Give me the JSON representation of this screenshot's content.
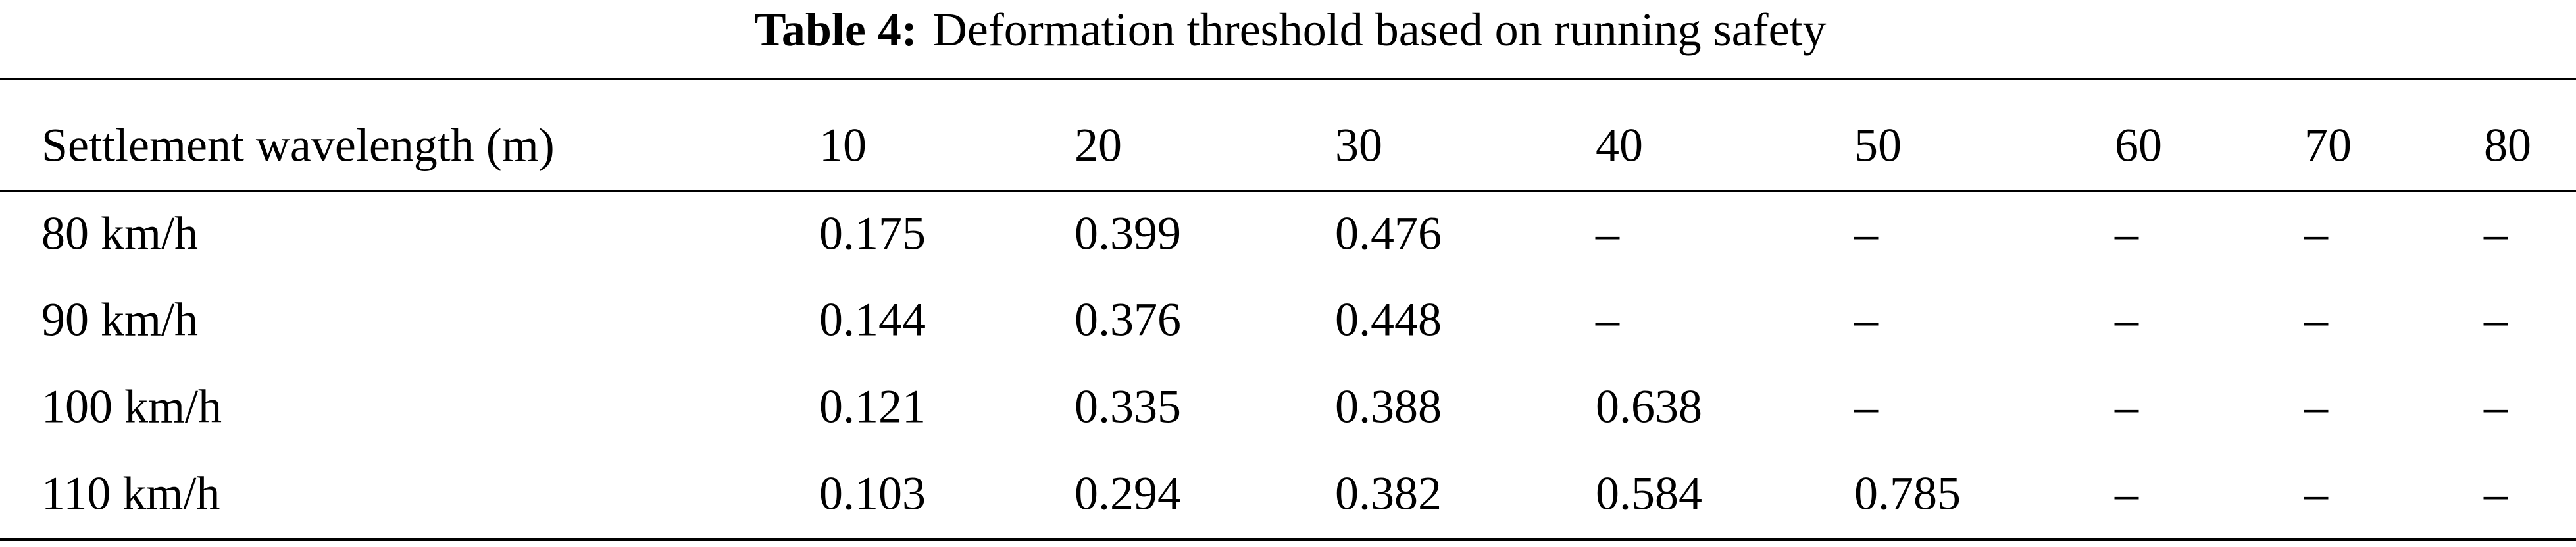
{
  "caption": {
    "label": "Table 4:",
    "title": "Deformation threshold based on running safety"
  },
  "table": {
    "header": [
      "Settlement wavelength (m)",
      "10",
      "20",
      "30",
      "40",
      "50",
      "60",
      "70",
      "80"
    ],
    "rows": [
      [
        "80 km/h",
        "0.175",
        "0.399",
        "0.476",
        "–",
        "–",
        "–",
        "–",
        "–"
      ],
      [
        "90 km/h",
        "0.144",
        "0.376",
        "0.448",
        "–",
        "–",
        "–",
        "–",
        "–"
      ],
      [
        "100 km/h",
        "0.121",
        "0.335",
        "0.388",
        "0.638",
        "–",
        "–",
        "–",
        "–"
      ],
      [
        "110 km/h",
        "0.103",
        "0.294",
        "0.382",
        "0.584",
        "0.785",
        "–",
        "–",
        "–"
      ]
    ]
  }
}
